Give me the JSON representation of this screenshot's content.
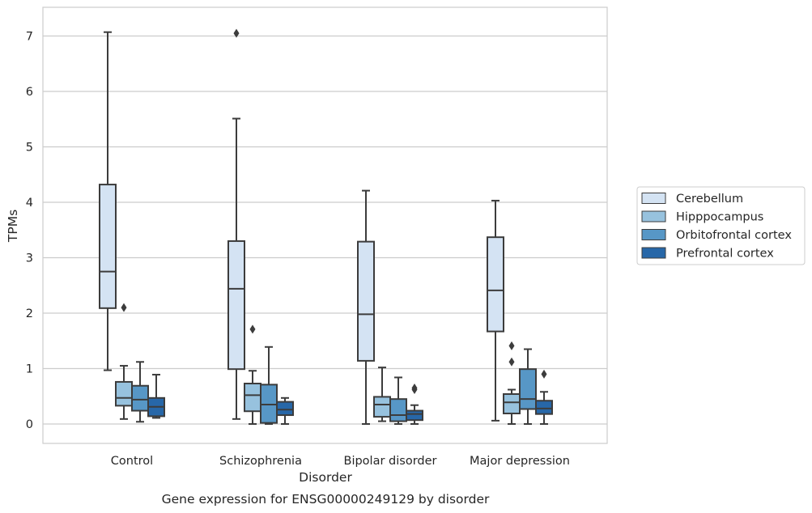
{
  "chart_data": {
    "type": "box",
    "title": "Gene expression for ENSG00000249129 by disorder",
    "xlabel": "Disorder",
    "ylabel": "TPMs",
    "ylim": [
      -0.35,
      7.45
    ],
    "yticks": [
      0,
      1,
      2,
      3,
      4,
      5,
      6,
      7
    ],
    "grid": "horizontal",
    "legend_position": "right",
    "categories": [
      "Control",
      "Schizophrenia",
      "Bipolar disorder",
      "Major depression"
    ],
    "series": [
      {
        "name": "Cerebellum",
        "color": "#d4e3f3",
        "boxes": [
          {
            "min": 0.97,
            "q1": 2.09,
            "median": 2.75,
            "q3": 4.32,
            "max": 7.07,
            "outliers": []
          },
          {
            "min": 0.09,
            "q1": 0.99,
            "median": 2.44,
            "q3": 3.3,
            "max": 5.51,
            "outliers": [
              7.05
            ]
          },
          {
            "min": 0.0,
            "q1": 1.14,
            "median": 1.98,
            "q3": 3.29,
            "max": 4.21,
            "outliers": []
          },
          {
            "min": 0.06,
            "q1": 1.67,
            "median": 2.41,
            "q3": 3.37,
            "max": 4.03,
            "outliers": []
          }
        ]
      },
      {
        "name": "Hipppocampus",
        "color": "#97c2de",
        "boxes": [
          {
            "min": 0.09,
            "q1": 0.33,
            "median": 0.47,
            "q3": 0.76,
            "max": 1.05,
            "outliers": [
              2.1
            ]
          },
          {
            "min": 0.0,
            "q1": 0.23,
            "median": 0.52,
            "q3": 0.73,
            "max": 0.96,
            "outliers": [
              1.71
            ]
          },
          {
            "min": 0.05,
            "q1": 0.13,
            "median": 0.35,
            "q3": 0.49,
            "max": 1.02,
            "outliers": []
          },
          {
            "min": 0.0,
            "q1": 0.19,
            "median": 0.39,
            "q3": 0.54,
            "max": 0.62,
            "outliers": [
              1.12,
              1.41
            ]
          }
        ]
      },
      {
        "name": "Orbitofrontal cortex",
        "color": "#5797c6",
        "boxes": [
          {
            "min": 0.04,
            "q1": 0.24,
            "median": 0.44,
            "q3": 0.69,
            "max": 1.12,
            "outliers": []
          },
          {
            "min": 0.0,
            "q1": 0.02,
            "median": 0.35,
            "q3": 0.71,
            "max": 1.39,
            "outliers": []
          },
          {
            "min": 0.0,
            "q1": 0.05,
            "median": 0.16,
            "q3": 0.45,
            "max": 0.84,
            "outliers": []
          },
          {
            "min": 0.0,
            "q1": 0.27,
            "median": 0.45,
            "q3": 0.99,
            "max": 1.35,
            "outliers": []
          }
        ]
      },
      {
        "name": "Prefrontal cortex",
        "color": "#2767a8",
        "boxes": [
          {
            "min": 0.11,
            "q1": 0.14,
            "median": 0.31,
            "q3": 0.47,
            "max": 0.89,
            "outliers": []
          },
          {
            "min": 0.0,
            "q1": 0.16,
            "median": 0.26,
            "q3": 0.4,
            "max": 0.47,
            "outliers": []
          },
          {
            "min": 0.0,
            "q1": 0.07,
            "median": 0.18,
            "q3": 0.24,
            "max": 0.34,
            "outliers": [
              0.62,
              0.65
            ]
          },
          {
            "min": 0.0,
            "q1": 0.18,
            "median": 0.28,
            "q3": 0.42,
            "max": 0.58,
            "outliers": [
              0.9
            ]
          }
        ]
      }
    ]
  }
}
